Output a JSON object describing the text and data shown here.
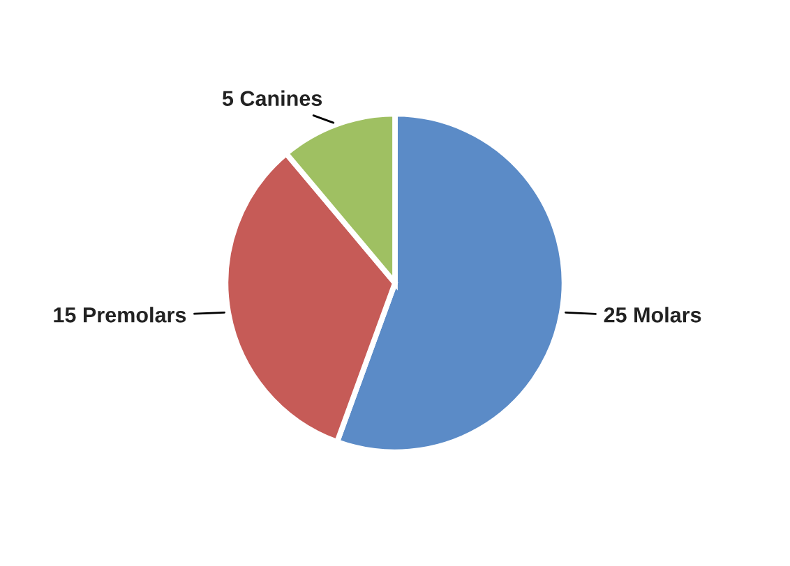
{
  "chart_data": {
    "type": "pie",
    "categories": [
      "25 Molars",
      "15 Premolars",
      "5 Canines"
    ],
    "values": [
      25,
      15,
      5
    ],
    "colors": [
      "#5b8bc7",
      "#c65b57",
      "#9fc062"
    ]
  }
}
